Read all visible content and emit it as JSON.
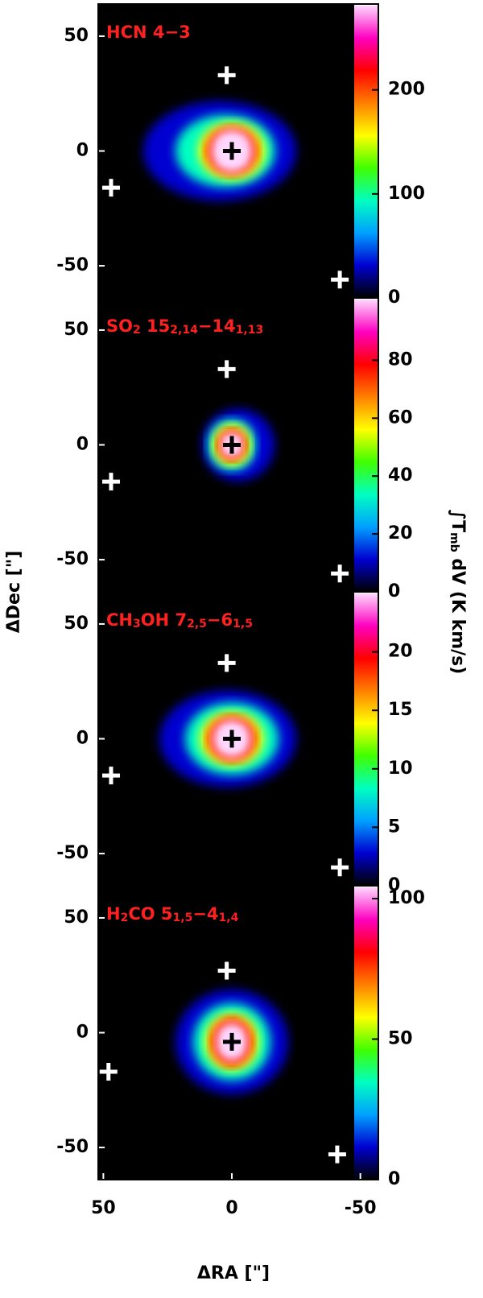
{
  "figure": {
    "xlabel": "ΔRA [\"]",
    "ylabel": "ΔDec [\"]",
    "colorbar_label": [
      "∫T",
      "mb",
      " dV (K km/s)"
    ],
    "colorscale": [
      "#000000",
      "#0000d0",
      "#00a0ff",
      "#00ffc0",
      "#40ff00",
      "#ffff00",
      "#ff8000",
      "#ff0000",
      "#ff00c0",
      "#ffd8ff"
    ]
  },
  "chart_data": [
    {
      "type": "map",
      "title": [
        "HCN 4−3"
      ],
      "xlim": [
        52,
        -57
      ],
      "ylim": [
        -64,
        64
      ],
      "yticks": [
        -50,
        0,
        50
      ],
      "clim": [
        0,
        281
      ],
      "cticks": [
        0,
        100,
        200
      ],
      "points": {
        "x": [
          0,
          2,
          47,
          -42
        ],
        "y": [
          0,
          33,
          -16,
          -56
        ],
        "colors": [
          "#000000",
          "#ffffff",
          "#ffffff",
          "#ffffff"
        ]
      }
    },
    {
      "type": "map",
      "title": [
        "SO",
        "2",
        " 15",
        "2,14",
        "−14",
        "1,13"
      ],
      "xlim": [
        52,
        -57
      ],
      "ylim": [
        -64,
        64
      ],
      "yticks": [
        -50,
        0,
        50
      ],
      "clim": [
        0,
        101
      ],
      "cticks": [
        0,
        20,
        40,
        60,
        80
      ],
      "points": {
        "x": [
          0,
          2,
          47,
          -42
        ],
        "y": [
          0,
          33,
          -16,
          -56
        ],
        "colors": [
          "#000000",
          "#ffffff",
          "#ffffff",
          "#ffffff"
        ]
      }
    },
    {
      "type": "map",
      "title": [
        "CH",
        "3",
        "OH 7",
        "2,5",
        "−6",
        "1,5"
      ],
      "xlim": [
        52,
        -57
      ],
      "ylim": [
        -64,
        64
      ],
      "yticks": [
        -50,
        0,
        50
      ],
      "clim": [
        0,
        25
      ],
      "cticks": [
        0,
        5,
        10,
        15,
        20
      ],
      "points": {
        "x": [
          0,
          2,
          47,
          -42
        ],
        "y": [
          0,
          33,
          -16,
          -56
        ],
        "colors": [
          "#000000",
          "#ffffff",
          "#ffffff",
          "#ffffff"
        ]
      }
    },
    {
      "type": "map",
      "title": [
        "H",
        "2",
        "CO 5",
        "1,5",
        "−4",
        "1,4"
      ],
      "xlim": [
        52,
        -57
      ],
      "ylim": [
        -64,
        64
      ],
      "yticks": [
        -50,
        0,
        50
      ],
      "xticks": [
        50,
        0,
        -50
      ],
      "clim": [
        0,
        104
      ],
      "cticks": [
        0,
        50,
        100
      ],
      "points": {
        "x": [
          0,
          2,
          48,
          -41
        ],
        "y": [
          -4,
          27,
          -17,
          -53
        ],
        "colors": [
          "#000000",
          "#ffffff",
          "#ffffff",
          "#ffffff"
        ]
      }
    }
  ]
}
